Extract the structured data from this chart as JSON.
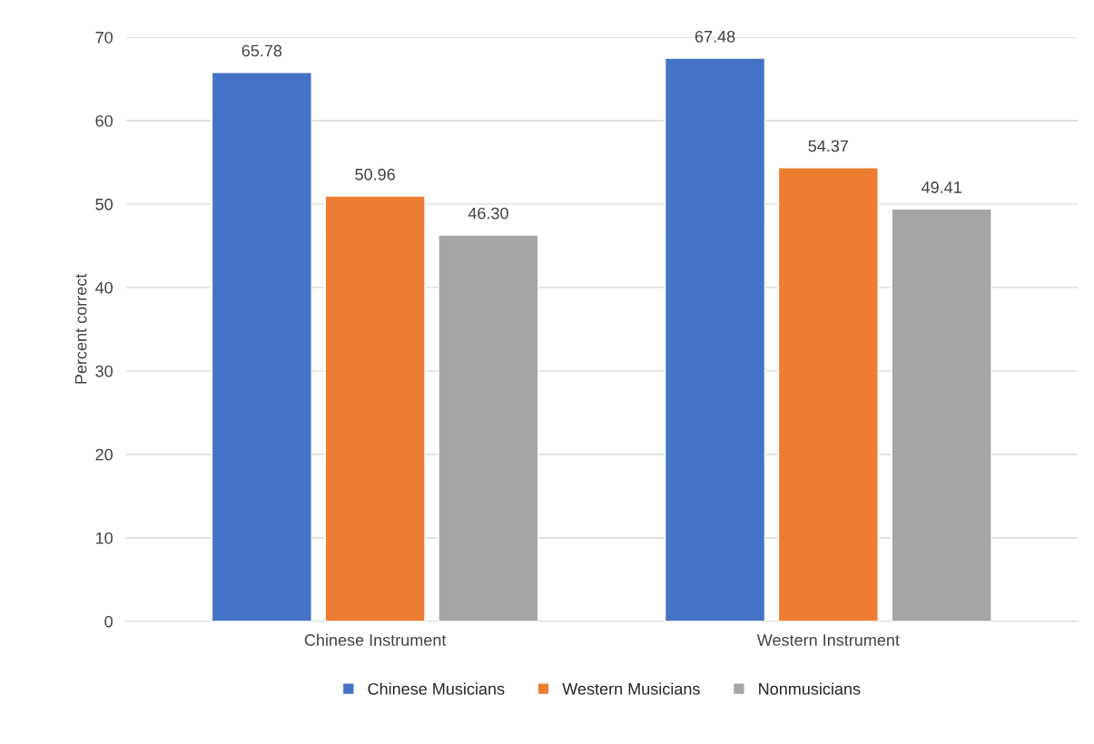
{
  "chart_data": {
    "type": "bar",
    "ylabel": "Percent correct",
    "categories": [
      "Chinese Instrument",
      "Western Instrument"
    ],
    "series": [
      {
        "name": "Chinese Musicians",
        "color": "#4472c4",
        "values": [
          65.78,
          67.48
        ],
        "value_labels": [
          "65.78",
          "67.48"
        ]
      },
      {
        "name": "Western Musicians",
        "color": "#ed7d31",
        "values": [
          50.96,
          54.37
        ],
        "value_labels": [
          "50.96",
          "54.37"
        ]
      },
      {
        "name": "Nonmusicians",
        "color": "#a5a5a5",
        "values": [
          46.3,
          49.41
        ],
        "value_labels": [
          "46.30",
          "49.41"
        ]
      }
    ],
    "ylim": [
      0,
      70
    ],
    "yticks": [
      0,
      10,
      20,
      30,
      40,
      50,
      60,
      70
    ],
    "grid": "y",
    "legend": "bottom"
  }
}
